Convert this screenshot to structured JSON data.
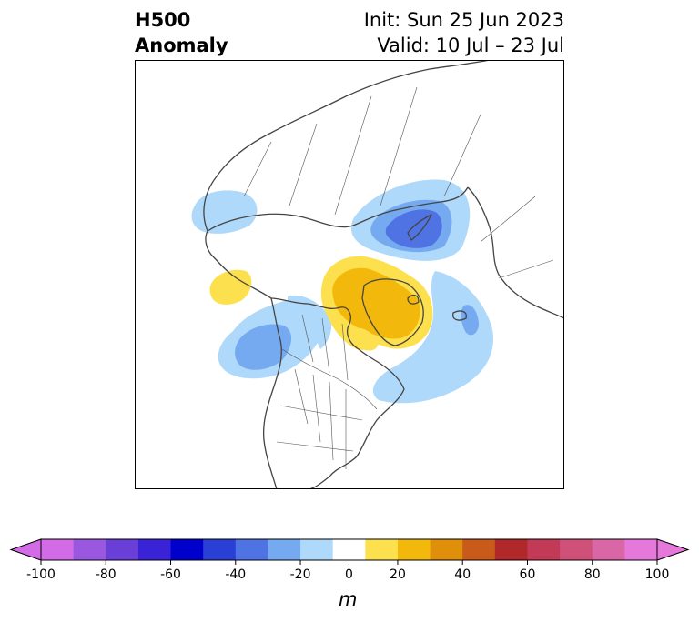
{
  "header": {
    "title_line1": "H500",
    "title_line2": "Anomaly",
    "init_text": "Init: Sun 25 Jun 2023",
    "valid_text": "Valid: 10 Jul – 23 Jul"
  },
  "colorbar": {
    "unit": "m",
    "tick_labels": [
      "-100",
      "-80",
      "-60",
      "-40",
      "-20",
      "0",
      "20",
      "40",
      "60",
      "80",
      "100"
    ],
    "levels": [
      -100,
      -90,
      -80,
      -70,
      -60,
      -50,
      -40,
      -30,
      -20,
      -10,
      10,
      20,
      30,
      40,
      50,
      60,
      70,
      80,
      90,
      100
    ],
    "colors": [
      "#d36ae6",
      "#9a58e0",
      "#6a3fd8",
      "#3a22d6",
      "#0000cc",
      "#2a3fd6",
      "#4f73e3",
      "#76aaf0",
      "#aed9fa",
      "#ffffff",
      "#fde04d",
      "#f2b90c",
      "#e08f0b",
      "#c85a1a",
      "#b0282a",
      "#c23a55",
      "#cf5078",
      "#d966a5",
      "#e678dc"
    ],
    "under_color": "#d36ae6",
    "over_color": "#e678dc"
  },
  "map": {
    "projection": "north-polar-stereographic",
    "anomaly_centers": [
      {
        "region": "Barents/Kara Sea",
        "value": -45
      },
      {
        "region": "Arctic Ocean north of Greenland",
        "value": 25
      },
      {
        "region": "Northern Greenland / Baffin Bay",
        "value": 30
      },
      {
        "region": "Northeast Pacific / Gulf of Alaska",
        "value": -30
      },
      {
        "region": "Bering Sea",
        "value": 15
      },
      {
        "region": "North Atlantic",
        "value": -20
      },
      {
        "region": "East Siberian Sea",
        "value": -15
      }
    ]
  }
}
